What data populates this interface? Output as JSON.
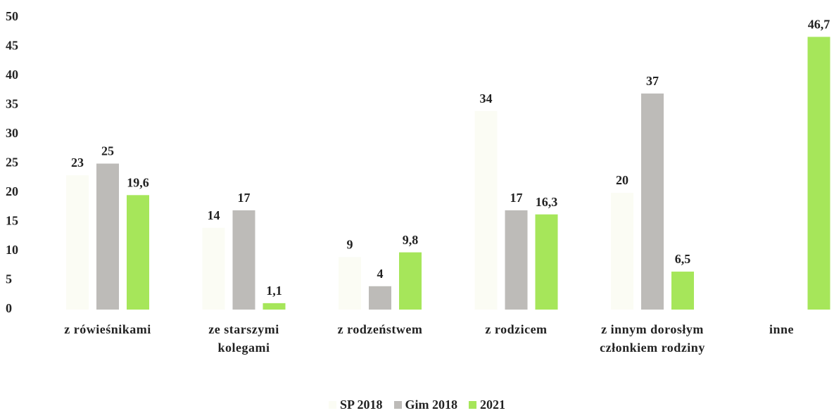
{
  "chart_data": {
    "type": "bar",
    "categories": [
      "z rówieśnikami",
      "ze starszymi kolegami",
      "z rodzeństwem",
      "z rodzicem",
      "z innym dorosłym członkiem rodziny",
      "inne"
    ],
    "series": [
      {
        "name": "SP 2018",
        "color": "#fbfcf4",
        "values": [
          23,
          14,
          9,
          34,
          20,
          null
        ]
      },
      {
        "name": "Gim 2018",
        "color": "#bdbbb8",
        "values": [
          25,
          17,
          4,
          17,
          37,
          null
        ]
      },
      {
        "name": "2021",
        "color": "#a6e65a",
        "values": [
          19.6,
          1.1,
          9.8,
          16.3,
          6.5,
          46.7
        ],
        "value_labels": [
          "19,6",
          "1,1",
          "9,8",
          "16,3",
          "6,5",
          "46,7"
        ]
      }
    ],
    "ylim": [
      0,
      50
    ],
    "yticks": [
      0,
      5,
      10,
      15,
      20,
      25,
      30,
      35,
      40,
      45,
      50
    ],
    "grid": false
  }
}
